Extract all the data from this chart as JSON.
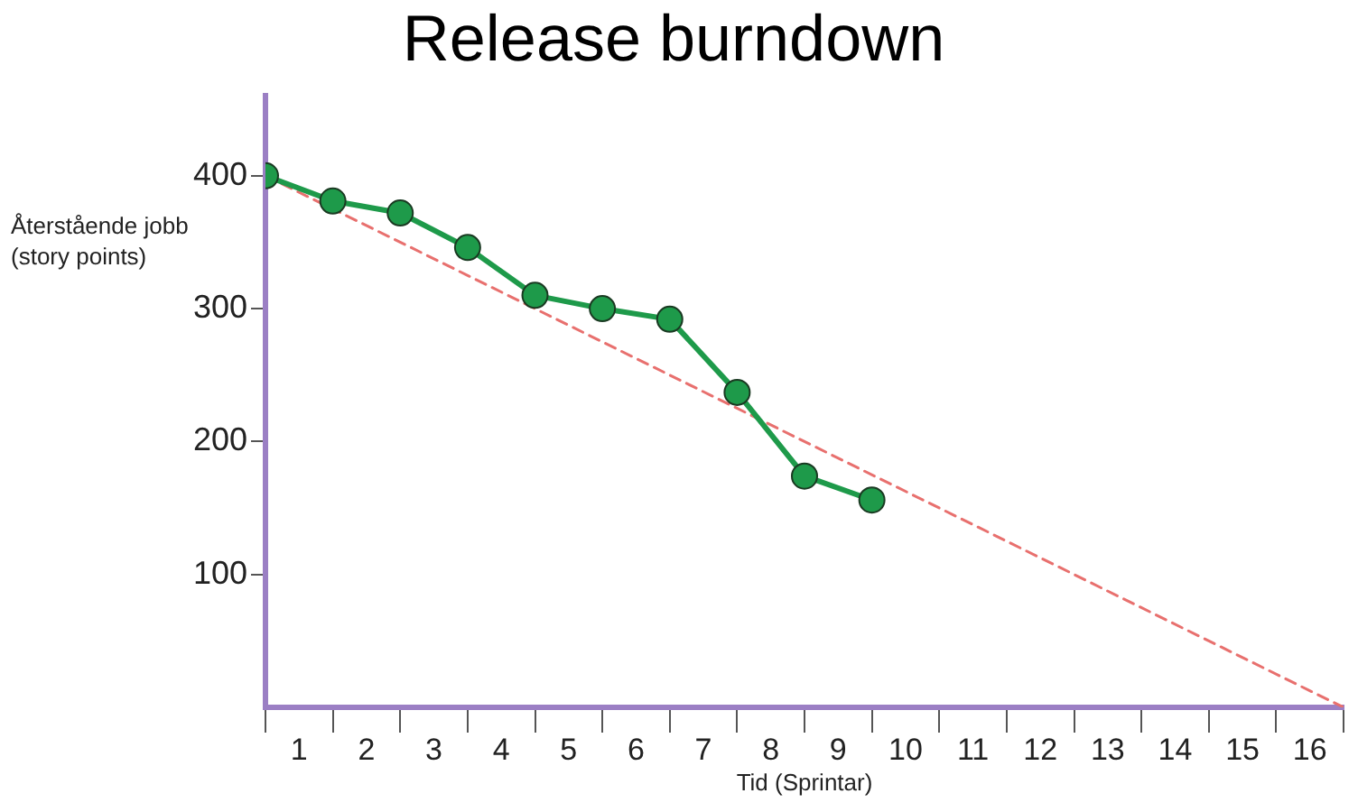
{
  "chart_data": {
    "type": "line",
    "title": "Release burndown",
    "xlabel": "Tid (Sprintar)",
    "ylabel": "Återstående jobb (story points)",
    "xlim": [
      0,
      16
    ],
    "ylim": [
      0,
      460
    ],
    "xticks": [
      {
        "value": 0,
        "label": null
      },
      {
        "value": 0.5,
        "label": "1"
      },
      {
        "value": 1,
        "label": null
      },
      {
        "value": 1.5,
        "label": "2"
      },
      {
        "value": 2,
        "label": null
      },
      {
        "value": 2.5,
        "label": "3"
      },
      {
        "value": 3,
        "label": null
      },
      {
        "value": 3.5,
        "label": "4"
      },
      {
        "value": 4,
        "label": null
      },
      {
        "value": 4.5,
        "label": "5"
      },
      {
        "value": 5,
        "label": null
      },
      {
        "value": 5.5,
        "label": "6"
      },
      {
        "value": 6,
        "label": null
      },
      {
        "value": 6.5,
        "label": "7"
      },
      {
        "value": 7,
        "label": null
      },
      {
        "value": 7.5,
        "label": "8"
      },
      {
        "value": 8,
        "label": null
      },
      {
        "value": 8.5,
        "label": "9"
      },
      {
        "value": 9,
        "label": null
      },
      {
        "value": 9.5,
        "label": "10"
      },
      {
        "value": 10,
        "label": null
      },
      {
        "value": 10.5,
        "label": "11"
      },
      {
        "value": 11,
        "label": null
      },
      {
        "value": 11.5,
        "label": "12"
      },
      {
        "value": 12,
        "label": null
      },
      {
        "value": 12.5,
        "label": "13"
      },
      {
        "value": 13,
        "label": null
      },
      {
        "value": 13.5,
        "label": "14"
      },
      {
        "value": 14,
        "label": null
      },
      {
        "value": 14.5,
        "label": "15"
      },
      {
        "value": 15,
        "label": null
      },
      {
        "value": 15.5,
        "label": "16"
      },
      {
        "value": 16,
        "label": null
      }
    ],
    "yticks": [
      100,
      200,
      300,
      400
    ],
    "grid": false,
    "legend": false,
    "marker": "circle",
    "line_style": "solid",
    "series": [
      {
        "x": [
          0,
          16
        ],
        "values": [
          400,
          0
        ],
        "color": "#e8706e",
        "marker": "none",
        "line_style": "dashed"
      },
      {
        "x": [
          0,
          1,
          2,
          3,
          4,
          5,
          6,
          7,
          8,
          9
        ],
        "values": [
          400,
          381,
          372,
          346,
          310,
          300,
          292,
          237,
          174,
          156
        ],
        "color": "#1e9a4a"
      }
    ]
  }
}
